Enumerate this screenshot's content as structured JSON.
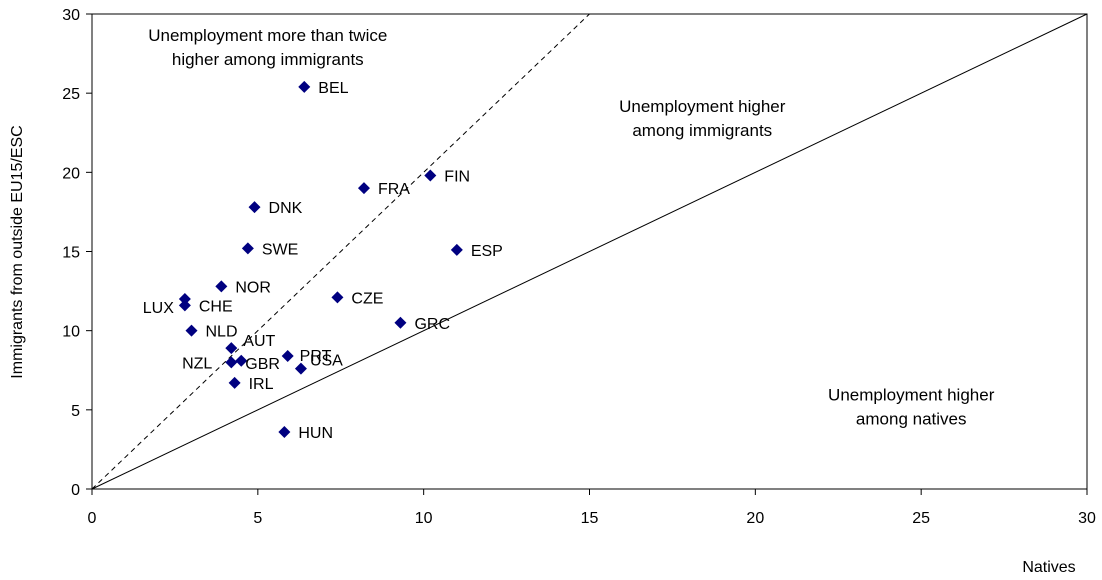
{
  "chart_data": {
    "type": "scatter",
    "title": "",
    "xlabel": "Natives",
    "ylabel": "Immigrants from outside EU15/ESC",
    "xlim": [
      0,
      30
    ],
    "ylim": [
      0,
      30
    ],
    "xticks": [
      0,
      5,
      10,
      15,
      20,
      25,
      30
    ],
    "yticks": [
      0,
      5,
      10,
      15,
      20,
      25,
      30
    ],
    "grid": false,
    "marker_color": "#000080",
    "reference_lines": [
      {
        "name": "y = x",
        "style": "solid",
        "slope": 1
      },
      {
        "name": "y = 2x",
        "style": "dashed",
        "slope": 2
      }
    ],
    "annotations": [
      {
        "lines": [
          "Unemployment more than twice",
          "higher among immigrants"
        ],
        "x": 5.3,
        "y": 28.3
      },
      {
        "lines": [
          "Unemployment higher",
          "among immigrants"
        ],
        "x": 18.4,
        "y": 23.8
      },
      {
        "lines": [
          "Unemployment higher",
          "among natives"
        ],
        "x": 24.7,
        "y": 5.6
      }
    ],
    "points": [
      {
        "label": "BEL",
        "x": 6.4,
        "y": 25.4
      },
      {
        "label": "FIN",
        "x": 10.2,
        "y": 19.8
      },
      {
        "label": "FRA",
        "x": 8.2,
        "y": 19.0
      },
      {
        "label": "DNK",
        "x": 4.9,
        "y": 17.8
      },
      {
        "label": "SWE",
        "x": 4.7,
        "y": 15.2
      },
      {
        "label": "ESP",
        "x": 11.0,
        "y": 15.1
      },
      {
        "label": "NOR",
        "x": 3.9,
        "y": 12.8
      },
      {
        "label": "CZE",
        "x": 7.4,
        "y": 12.1
      },
      {
        "label": "LUX",
        "x": 2.8,
        "y": 12.0
      },
      {
        "label": "CHE",
        "x": 2.8,
        "y": 11.6
      },
      {
        "label": "GRC",
        "x": 9.3,
        "y": 10.5
      },
      {
        "label": "NLD",
        "x": 3.0,
        "y": 10.0
      },
      {
        "label": "AUT",
        "x": 4.2,
        "y": 8.9
      },
      {
        "label": "PRT",
        "x": 5.9,
        "y": 8.4
      },
      {
        "label": "NZL",
        "x": 4.2,
        "y": 8.0
      },
      {
        "label": "GBR",
        "x": 4.5,
        "y": 8.1
      },
      {
        "label": "USA",
        "x": 6.3,
        "y": 7.6
      },
      {
        "label": "IRL",
        "x": 4.3,
        "y": 6.7
      },
      {
        "label": "HUN",
        "x": 5.8,
        "y": 3.6
      }
    ]
  }
}
